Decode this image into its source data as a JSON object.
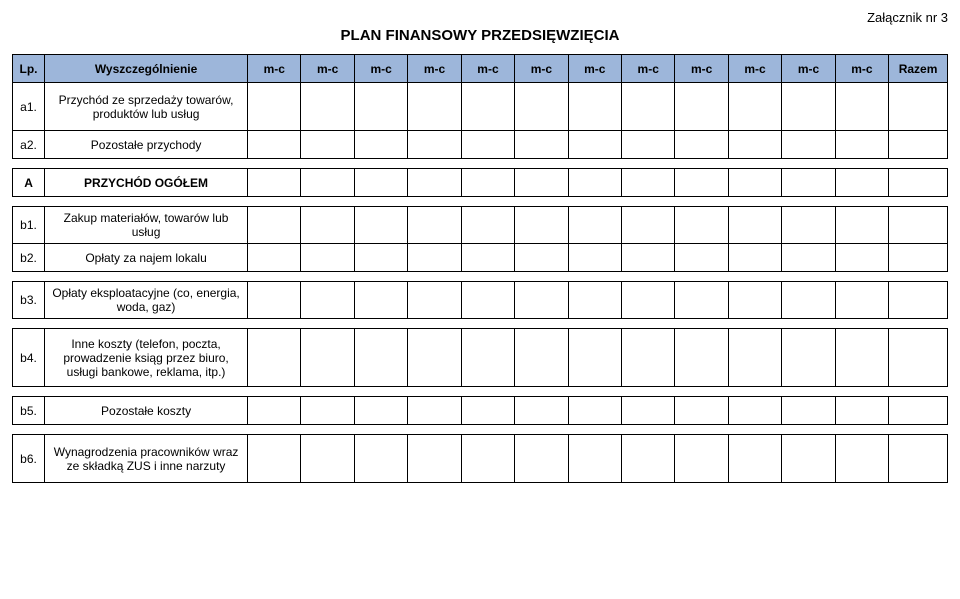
{
  "attachment_label": "Załącznik nr 3",
  "title": "PLAN FINANSOWY PRZEDSIĘWZIĘCIA",
  "header": {
    "lp": "Lp.",
    "desc": "Wyszczególnienie",
    "mc": "m-c",
    "razem": "Razem"
  },
  "colors": {
    "header_bg": "#9db6da",
    "border": "#000000",
    "page_bg": "#ffffff",
    "text": "#000000"
  },
  "rows": [
    {
      "lp": "a1.",
      "desc": "Przychód ze sprzedaży towarów, produktów lub usług",
      "bold": false,
      "rowClass": "tall",
      "spacerAfter": false
    },
    {
      "lp": "a2.",
      "desc": "Pozostałe przychody",
      "bold": false,
      "rowClass": "short",
      "spacerAfter": true
    },
    {
      "lp": "A",
      "desc": "PRZYCHÓD OGÓŁEM",
      "bold": true,
      "rowClass": "short",
      "spacerAfter": true
    },
    {
      "lp": "b1.",
      "desc": "Zakup materiałów, towarów lub usług",
      "bold": false,
      "rowClass": "med",
      "spacerAfter": false
    },
    {
      "lp": "b2.",
      "desc": "Opłaty za najem lokalu",
      "bold": false,
      "rowClass": "short",
      "spacerAfter": true
    },
    {
      "lp": "b3.",
      "desc": "Opłaty eksploatacyjne (co, energia, woda, gaz)",
      "bold": false,
      "rowClass": "med",
      "spacerAfter": true
    },
    {
      "lp": "b4.",
      "desc": "Inne koszty (telefon, poczta, prowadzenie ksiąg przez biuro, usługi bankowe, reklama, itp.)",
      "bold": false,
      "rowClass": "xtall",
      "spacerAfter": true
    },
    {
      "lp": "b5.",
      "desc": "Pozostałe koszty",
      "bold": false,
      "rowClass": "short",
      "spacerAfter": true
    },
    {
      "lp": "b6.",
      "desc": "Wynagrodzenia pracowników wraz ze składką ZUS i inne narzuty",
      "bold": false,
      "rowClass": "tall",
      "spacerAfter": false
    }
  ],
  "month_col_count": 12
}
